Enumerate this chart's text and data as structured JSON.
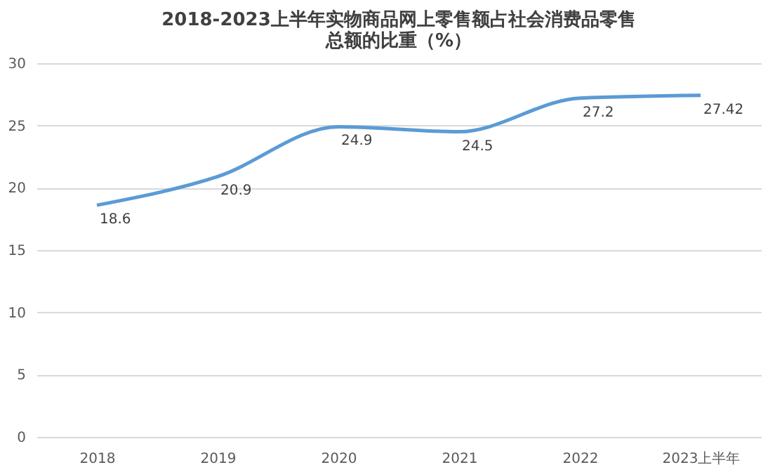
{
  "chart_data": {
    "type": "line",
    "title": "2018-2023上半年实物商品网上零售额占社会消费品零售总额的比重（%）",
    "categories": [
      "2018",
      "2019",
      "2020",
      "2021",
      "2022",
      "2023上半年"
    ],
    "series": [
      {
        "color": "#5b9bd5",
        "values": [
          18.6,
          20.9,
          24.9,
          24.5,
          27.2,
          27.42
        ]
      }
    ],
    "ylim": [
      0,
      30
    ],
    "yticks": [
      0,
      5,
      10,
      15,
      20,
      25,
      30
    ],
    "grid": "y",
    "data_labels": true,
    "marker": "none",
    "line_style": "solid"
  }
}
